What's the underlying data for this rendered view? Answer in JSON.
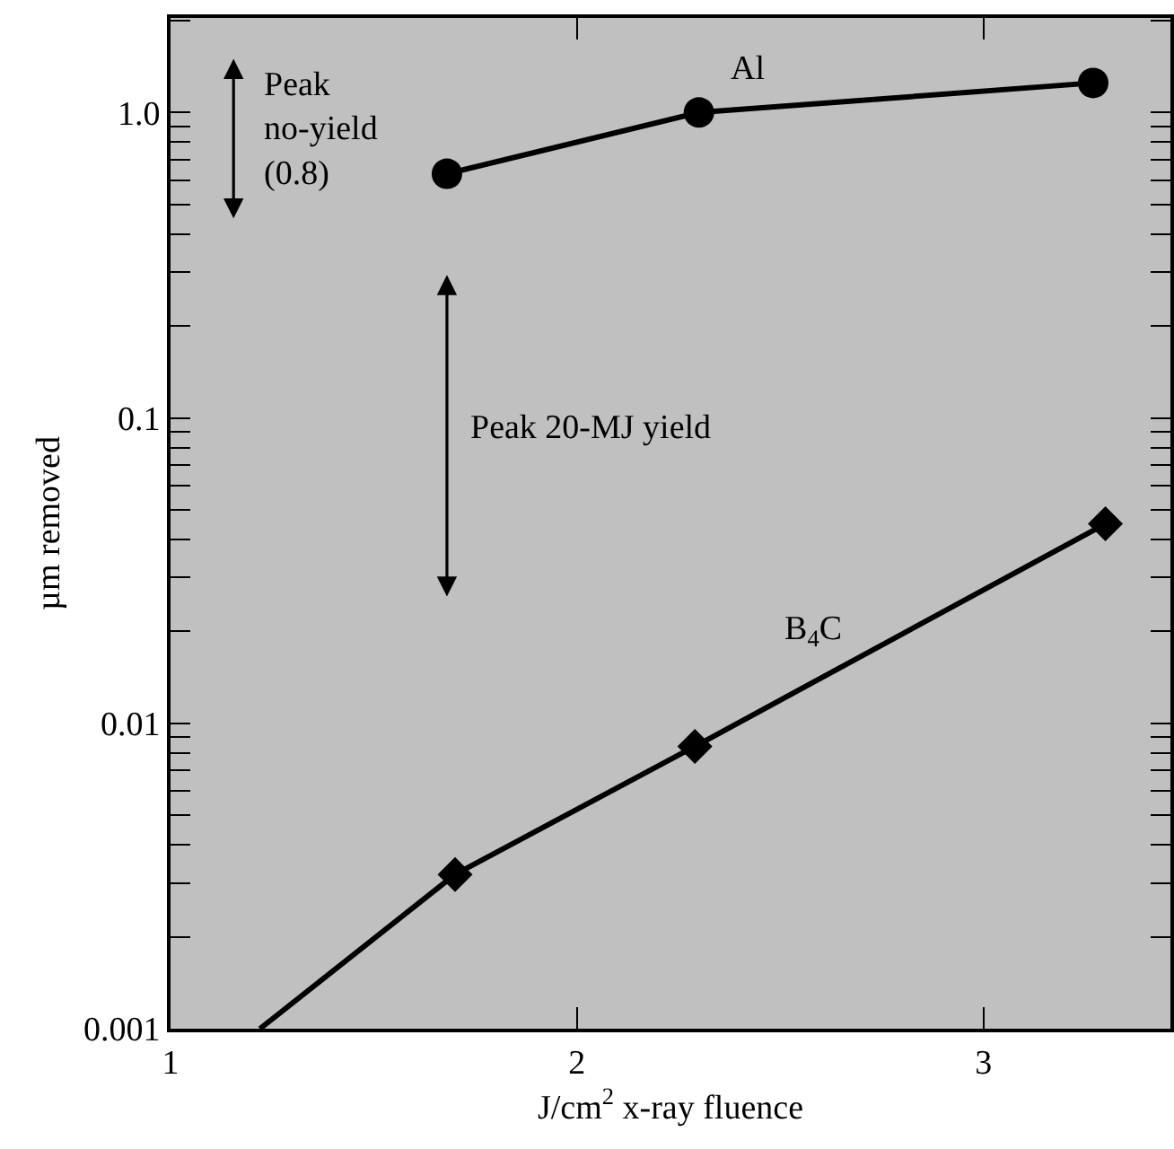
{
  "chart_data": {
    "type": "line",
    "xlabel": "J/cm$^{2}$ x-ray fluence",
    "ylabel": "µm removed",
    "log": "y",
    "xlim": [
      1,
      3.46
    ],
    "xticks": [
      1,
      2,
      3
    ],
    "ylim": [
      0.001,
      2.04
    ],
    "yticks": [
      {
        "value": 0.001,
        "label": "0.001"
      },
      {
        "value": 0.002,
        "label": null
      },
      {
        "value": 0.003,
        "label": null
      },
      {
        "value": 0.004,
        "label": null
      },
      {
        "value": 0.005,
        "label": null
      },
      {
        "value": 0.006,
        "label": null
      },
      {
        "value": 0.007,
        "label": null
      },
      {
        "value": 0.008,
        "label": null
      },
      {
        "value": 0.009,
        "label": null
      },
      0.01,
      {
        "value": 0.02,
        "label": null
      },
      {
        "value": 0.03,
        "label": null
      },
      {
        "value": 0.04,
        "label": null
      },
      {
        "value": 0.05,
        "label": null
      },
      {
        "value": 0.06,
        "label": null
      },
      {
        "value": 0.07,
        "label": null
      },
      {
        "value": 0.08,
        "label": null
      },
      {
        "value": 0.09,
        "label": null
      },
      0.1,
      {
        "value": 0.2,
        "label": null
      },
      {
        "value": 0.3,
        "label": null
      },
      {
        "value": 0.4,
        "label": null
      },
      {
        "value": 0.5,
        "label": null
      },
      {
        "value": 0.6,
        "label": null
      },
      {
        "value": 0.7,
        "label": null
      },
      {
        "value": 0.8,
        "label": null
      },
      {
        "value": 0.9,
        "label": null
      },
      {
        "value": 1,
        "label": "1.0"
      },
      {
        "value": 2,
        "label": null
      }
    ],
    "line_style": "solid",
    "series": [
      {
        "color": "#000000",
        "marker": "circle",
        "x": [
          1.68,
          2.3,
          3.27
        ],
        "values": [
          0.63,
          1.0,
          1.25
        ]
      },
      {
        "color": "#000000",
        "marker": "diamond",
        "x": [
          1.22,
          1.7,
          2.29,
          3.3
        ],
        "values": [
          0.001,
          0.0032,
          0.0084,
          0.045
        ]
      }
    ],
    "annotations": [
      "Al",
      "B$_{4}$C",
      "Peak no-yield (0.8)",
      "Peak 20-MJ yield"
    ]
  }
}
